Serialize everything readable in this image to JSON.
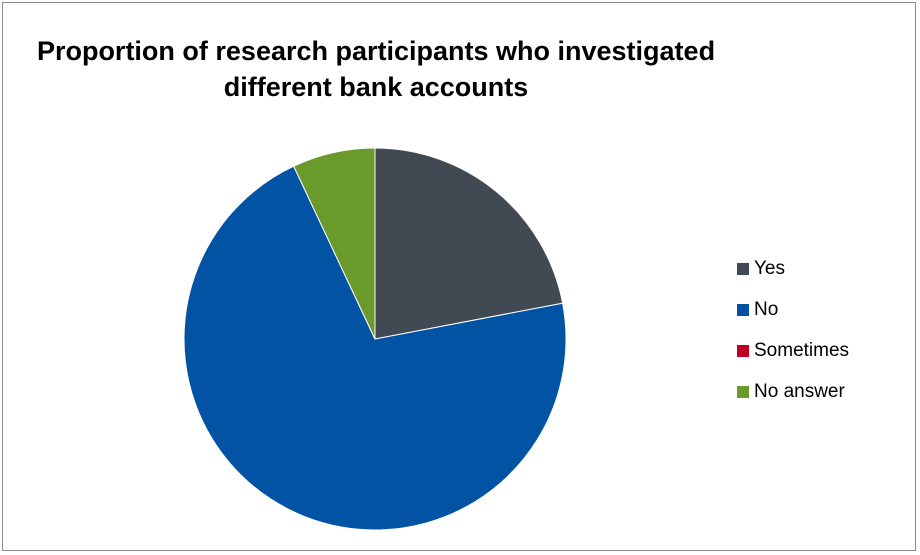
{
  "chart_data": {
    "type": "pie",
    "title": "Proportion of research participants who investigated different bank accounts",
    "categories": [
      "Yes",
      "No",
      "Sometimes",
      "No answer"
    ],
    "values": [
      22,
      71,
      0,
      7
    ],
    "colors": [
      "#414a52",
      "#0353a4",
      "#c00020",
      "#6a9a2c"
    ],
    "legend_position": "right"
  }
}
